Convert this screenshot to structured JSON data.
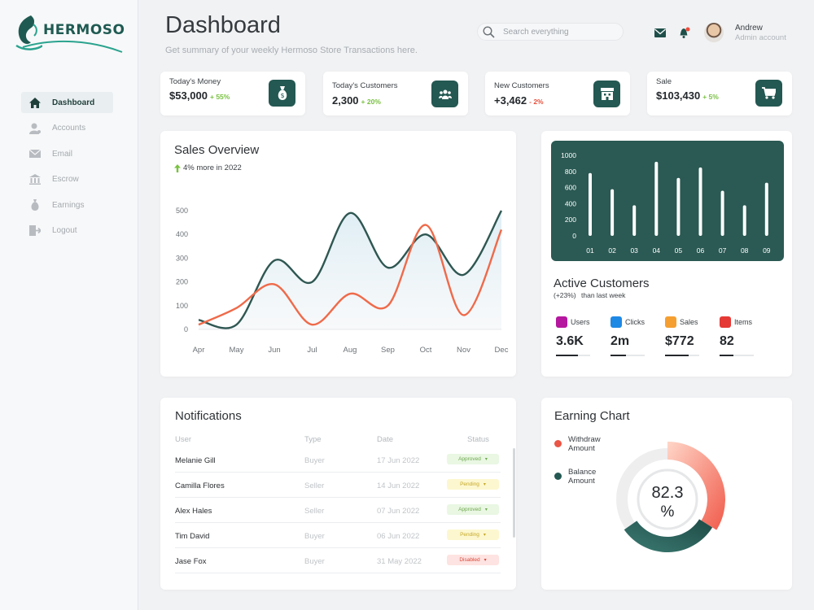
{
  "brand": {
    "name": "HERMOSO"
  },
  "sidebar": {
    "items": [
      {
        "label": "Dashboard",
        "icon": "home-icon",
        "active": true
      },
      {
        "label": "Accounts",
        "icon": "user-icon",
        "active": false
      },
      {
        "label": "Email",
        "icon": "mail-icon",
        "active": false
      },
      {
        "label": "Escrow",
        "icon": "bank-icon",
        "active": false
      },
      {
        "label": "Earnings",
        "icon": "money-bag-icon",
        "active": false
      },
      {
        "label": "Logout",
        "icon": "logout-icon",
        "active": false
      }
    ]
  },
  "header": {
    "title": "Dashboard",
    "subtitle": "Get summary of your weekly Hermoso Store Transactions here.",
    "search_placeholder": "Search everything",
    "user": {
      "name": "Andrew",
      "role": "Admin account"
    }
  },
  "stats": [
    {
      "label": "Today's Money",
      "value": "$53,000",
      "change": "+ 55%",
      "trend": "up",
      "icon": "money-bag-icon"
    },
    {
      "label": "Today's Customers",
      "value": "2,300",
      "change": "+ 20%",
      "trend": "up",
      "icon": "users-icon"
    },
    {
      "label": "New Customers",
      "value": "+3,462",
      "change": "- 2%",
      "trend": "down",
      "icon": "store-icon"
    },
    {
      "label": "Sale",
      "value": "$103,430",
      "change": "+ 5%",
      "trend": "up",
      "icon": "cart-icon"
    }
  ],
  "sales_overview": {
    "title": "Sales Overview",
    "note": "4% more in 2022",
    "chart_data": {
      "type": "line",
      "categories": [
        "Apr",
        "May",
        "Jun",
        "Jul",
        "Aug",
        "Sep",
        "Oct",
        "Nov",
        "Dec"
      ],
      "y_ticks": [
        0,
        100,
        200,
        300,
        400,
        500
      ],
      "ylim": [
        0,
        500
      ],
      "series": [
        {
          "color": "#2f5752",
          "values": [
            40,
            20,
            290,
            200,
            490,
            260,
            400,
            230,
            500
          ]
        },
        {
          "color": "#ef6a4a",
          "values": [
            20,
            90,
            190,
            20,
            150,
            100,
            440,
            60,
            420
          ]
        }
      ]
    }
  },
  "active_customers": {
    "title": "Active Customers",
    "change": "(+23%)",
    "note": "than last week",
    "chart_data": {
      "type": "bar",
      "categories": [
        "01",
        "02",
        "03",
        "04",
        "05",
        "06",
        "07",
        "08",
        "09"
      ],
      "values": [
        780,
        580,
        380,
        920,
        720,
        850,
        560,
        380,
        660
      ],
      "y_ticks": [
        0,
        200,
        400,
        600,
        800,
        1000
      ],
      "ylim": [
        0,
        1000
      ]
    },
    "metrics": [
      {
        "label": "Users",
        "value": "3.6K",
        "icon": "users-icon",
        "color": "#b5179e",
        "progress": 0.65
      },
      {
        "label": "Clicks",
        "value": "2m",
        "icon": "cursor-icon",
        "color": "#1e88e5",
        "progress": 0.45
      },
      {
        "label": "Sales",
        "value": "$772",
        "icon": "card-icon",
        "color": "#f59f30",
        "progress": 0.7
      },
      {
        "label": "Items",
        "value": "82",
        "icon": "tools-icon",
        "color": "#e53935",
        "progress": 0.4
      }
    ]
  },
  "notifications": {
    "title": "Notifications",
    "columns": [
      "User",
      "Type",
      "Date",
      "Status"
    ],
    "rows": [
      {
        "user": "Melanie Gill",
        "type": "Buyer",
        "date": "17 Jun 2022",
        "status": "Approved",
        "kind": "ok"
      },
      {
        "user": "Camilla Flores",
        "type": "Seller",
        "date": "14 Jun 2022",
        "status": "Pending",
        "kind": "pd"
      },
      {
        "user": "Alex Hales",
        "type": "Seller",
        "date": "07 Jun 2022",
        "status": "Approved",
        "kind": "ok"
      },
      {
        "user": "Tim David",
        "type": "Buyer",
        "date": "06 Jun 2022",
        "status": "Pending",
        "kind": "pd"
      },
      {
        "user": "Jase Fox",
        "type": "Buyer",
        "date": "31 May 2022",
        "status": "Disabled",
        "kind": "dn"
      }
    ]
  },
  "earning_chart": {
    "title": "Earning Chart",
    "legend": [
      {
        "label": "Withdraw\nAmount",
        "color": "#ea5545"
      },
      {
        "label": "Balance\nAmount",
        "color": "#245852"
      }
    ],
    "center_value": "82.3",
    "center_unit": "%",
    "chart_data": {
      "type": "pie",
      "value": 82.3,
      "unit": "%"
    }
  }
}
